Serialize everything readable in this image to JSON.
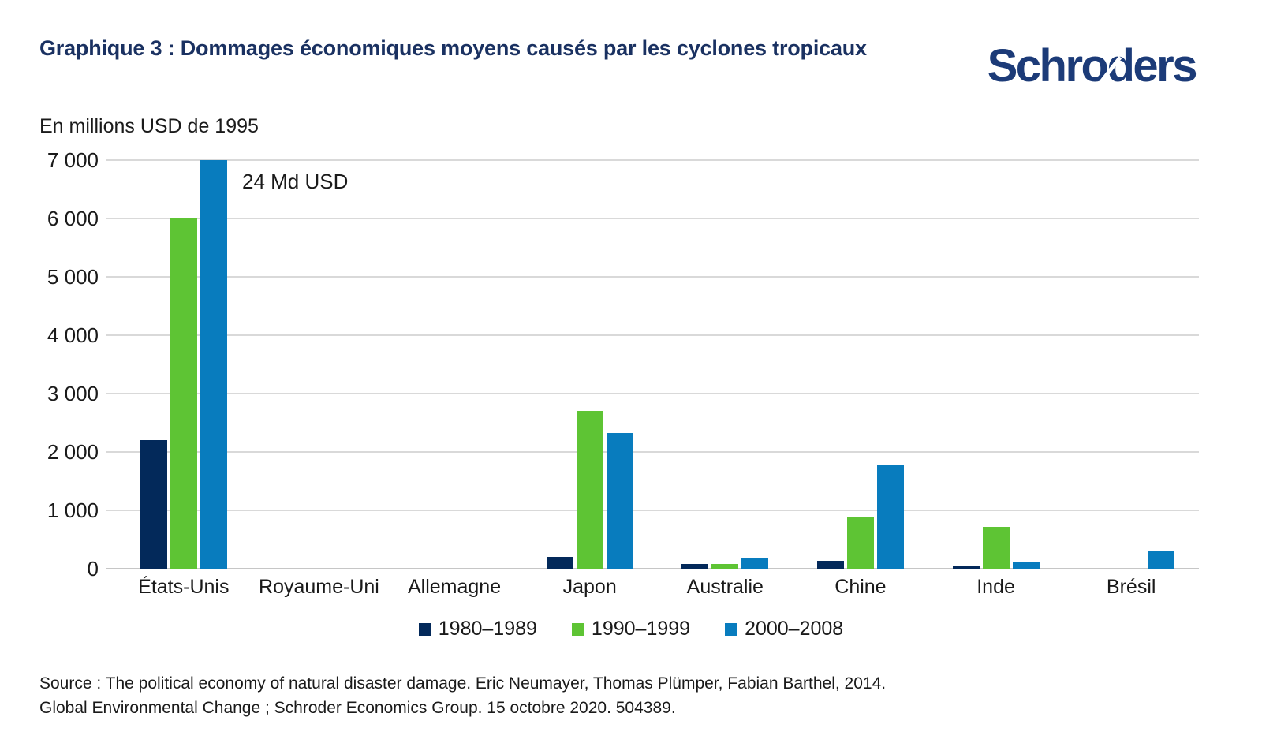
{
  "header": {
    "title": "Graphique 3 : Dommages économiques moyens causés par les cyclones tropicaux",
    "logo_text": "Schroders",
    "title_color": "#1a3161",
    "logo_color": "#1c3b78"
  },
  "chart_data": {
    "type": "bar",
    "title": "Graphique 3 : Dommages économiques moyens causés par les cyclones tropicaux",
    "axis_title": "En millions USD de 1995",
    "categories": [
      "États-Unis",
      "Royaume-Uni",
      "Allemagne",
      "Japon",
      "Australie",
      "Chine",
      "Inde",
      "Brésil"
    ],
    "series": [
      {
        "name": "1980–1989",
        "color": "#03295a",
        "values": [
          2200,
          0,
          0,
          200,
          75,
          130,
          50,
          0
        ]
      },
      {
        "name": "1990–1999",
        "color": "#5ec434",
        "values": [
          6000,
          0,
          0,
          2700,
          85,
          880,
          720,
          0
        ]
      },
      {
        "name": "2000–2008",
        "color": "#087cbe",
        "values": [
          24000,
          0,
          0,
          2330,
          180,
          1780,
          110,
          300
        ]
      }
    ],
    "ylim": [
      0,
      7000
    ],
    "clip_max": 7000,
    "yticks": [
      0,
      1000,
      2000,
      3000,
      4000,
      5000,
      6000,
      7000
    ],
    "ytick_labels": [
      "0",
      "1 000",
      "2 000",
      "3 000",
      "4 000",
      "5 000",
      "6 000",
      "7 000"
    ],
    "annotation": {
      "text": "24 Md USD",
      "note": "valeur réelle de la barre États-Unis 2000–2008, tronquée à 7 000"
    },
    "grid": "horizontal",
    "legend_position": "bottom"
  },
  "footer": {
    "source_line1": "Source : The political economy of natural disaster damage. Eric Neumayer, Thomas Plümper, Fabian Barthel, 2014.",
    "source_line2": "Global Environmental Change ; Schroder Economics Group. 15 octobre 2020. 504389."
  }
}
